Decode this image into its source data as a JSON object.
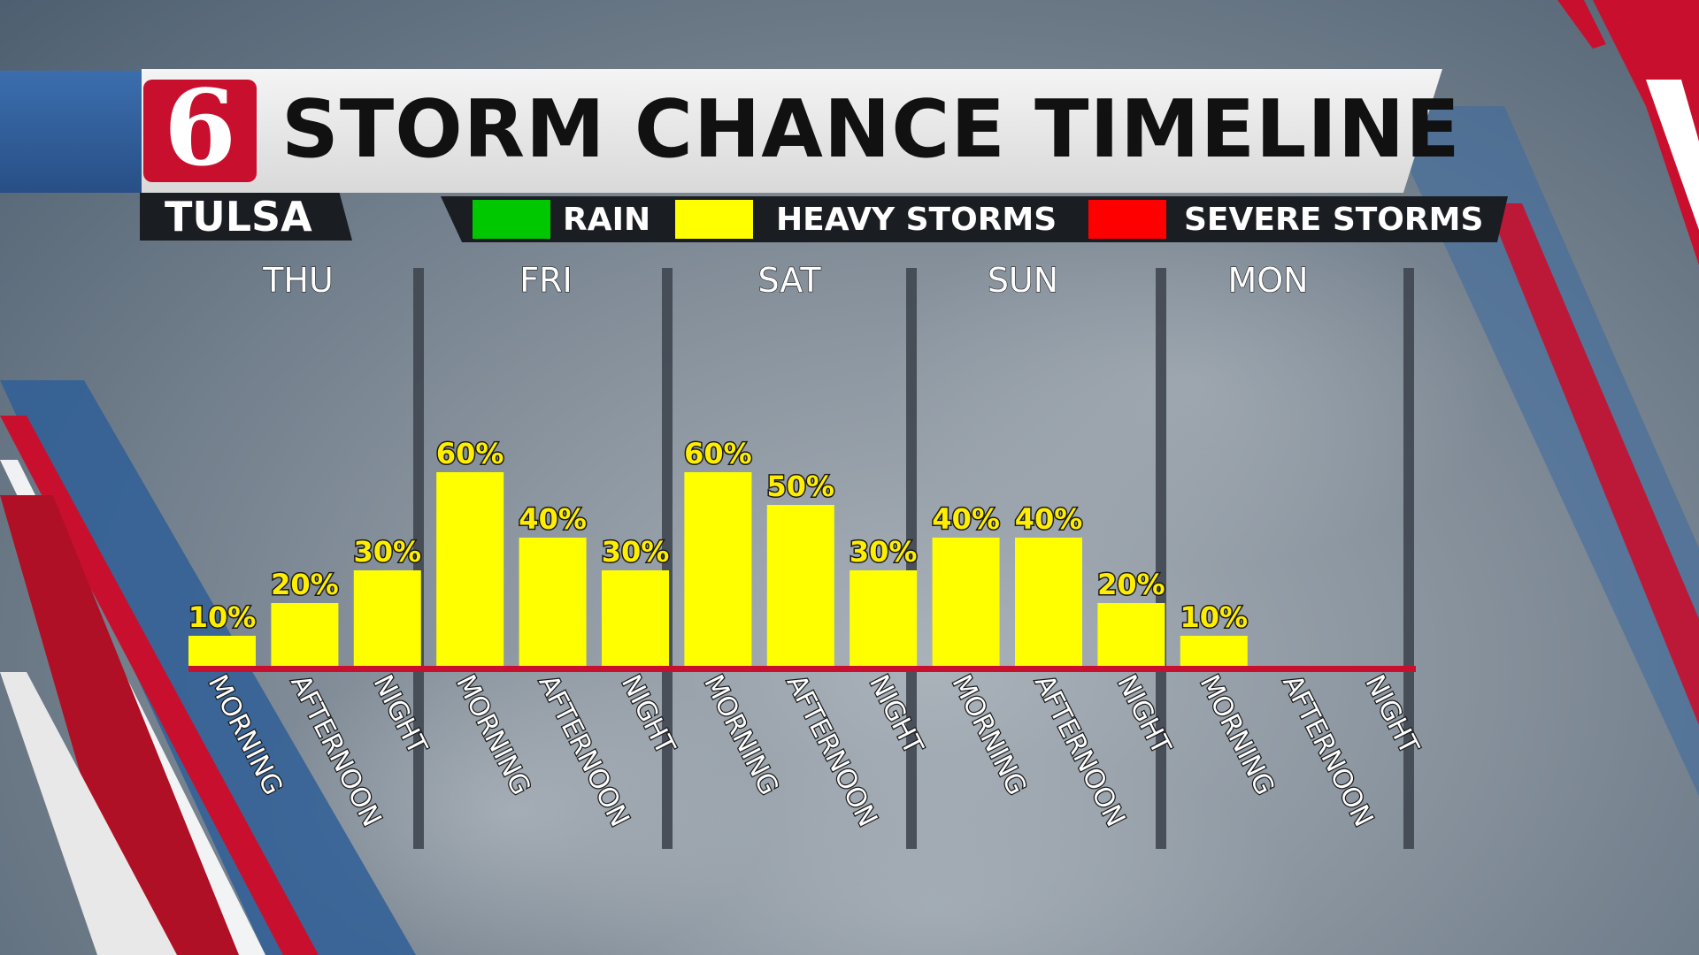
{
  "header": {
    "logo_text": "6",
    "title": "STORM CHANCE TIMELINE",
    "city": "TULSA"
  },
  "legend": [
    {
      "label": "RAIN",
      "color": "#00c800"
    },
    {
      "label": "HEAVY STORMS",
      "color": "#ffff00"
    },
    {
      "label": "SEVERE STORMS",
      "color": "#ff0000"
    }
  ],
  "chart_data": {
    "type": "bar",
    "days": [
      "THU",
      "FRI",
      "SAT",
      "SUN",
      "MON"
    ],
    "categories": [
      "MORNING",
      "AFTERNOON",
      "NIGHT",
      "MORNING",
      "AFTERNOON",
      "NIGHT",
      "MORNING",
      "AFTERNOON",
      "NIGHT",
      "MORNING",
      "AFTERNOON",
      "NIGHT",
      "MORNING",
      "AFTERNOON",
      "NIGHT"
    ],
    "values": [
      10,
      20,
      30,
      60,
      40,
      30,
      60,
      50,
      30,
      40,
      40,
      20,
      10,
      null,
      null
    ],
    "value_labels": [
      "10%",
      "20%",
      "30%",
      "60%",
      "40%",
      "30%",
      "60%",
      "50%",
      "30%",
      "40%",
      "40%",
      "20%",
      "10%",
      "",
      ""
    ],
    "bar_color": "#ffff00",
    "baseline_color": "#c8102e",
    "ylim": [
      0,
      100
    ]
  }
}
